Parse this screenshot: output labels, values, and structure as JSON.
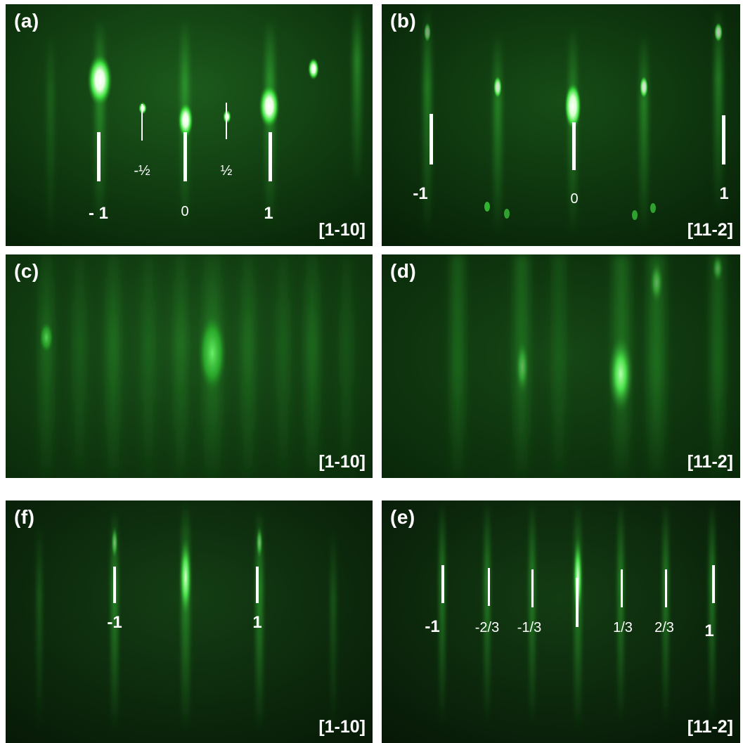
{
  "panels": {
    "a": {
      "label": "(a)",
      "direction": "[1-10]",
      "indices": {
        "m1": "- 1",
        "mhalf": "-½",
        "zero": "0",
        "half": "½",
        "p1": "1"
      }
    },
    "b": {
      "label": "(b)",
      "direction": "[11-2]",
      "indices": {
        "m1": "-1",
        "zero": "0",
        "p1": "1"
      }
    },
    "c": {
      "label": "(c)",
      "direction": "[1-10]"
    },
    "d": {
      "label": "(d)",
      "direction": "[11-2]"
    },
    "f": {
      "label": "(f)",
      "direction": "[1-10]",
      "indices": {
        "m1": "-1",
        "p1": "1"
      }
    },
    "e": {
      "label": "(e)",
      "direction": "[11-2]",
      "indices": {
        "m1": "-1",
        "m23": "-2/3",
        "m13": "-1/3",
        "p13": "1/3",
        "p23": "2/3",
        "p1": "1"
      }
    }
  }
}
